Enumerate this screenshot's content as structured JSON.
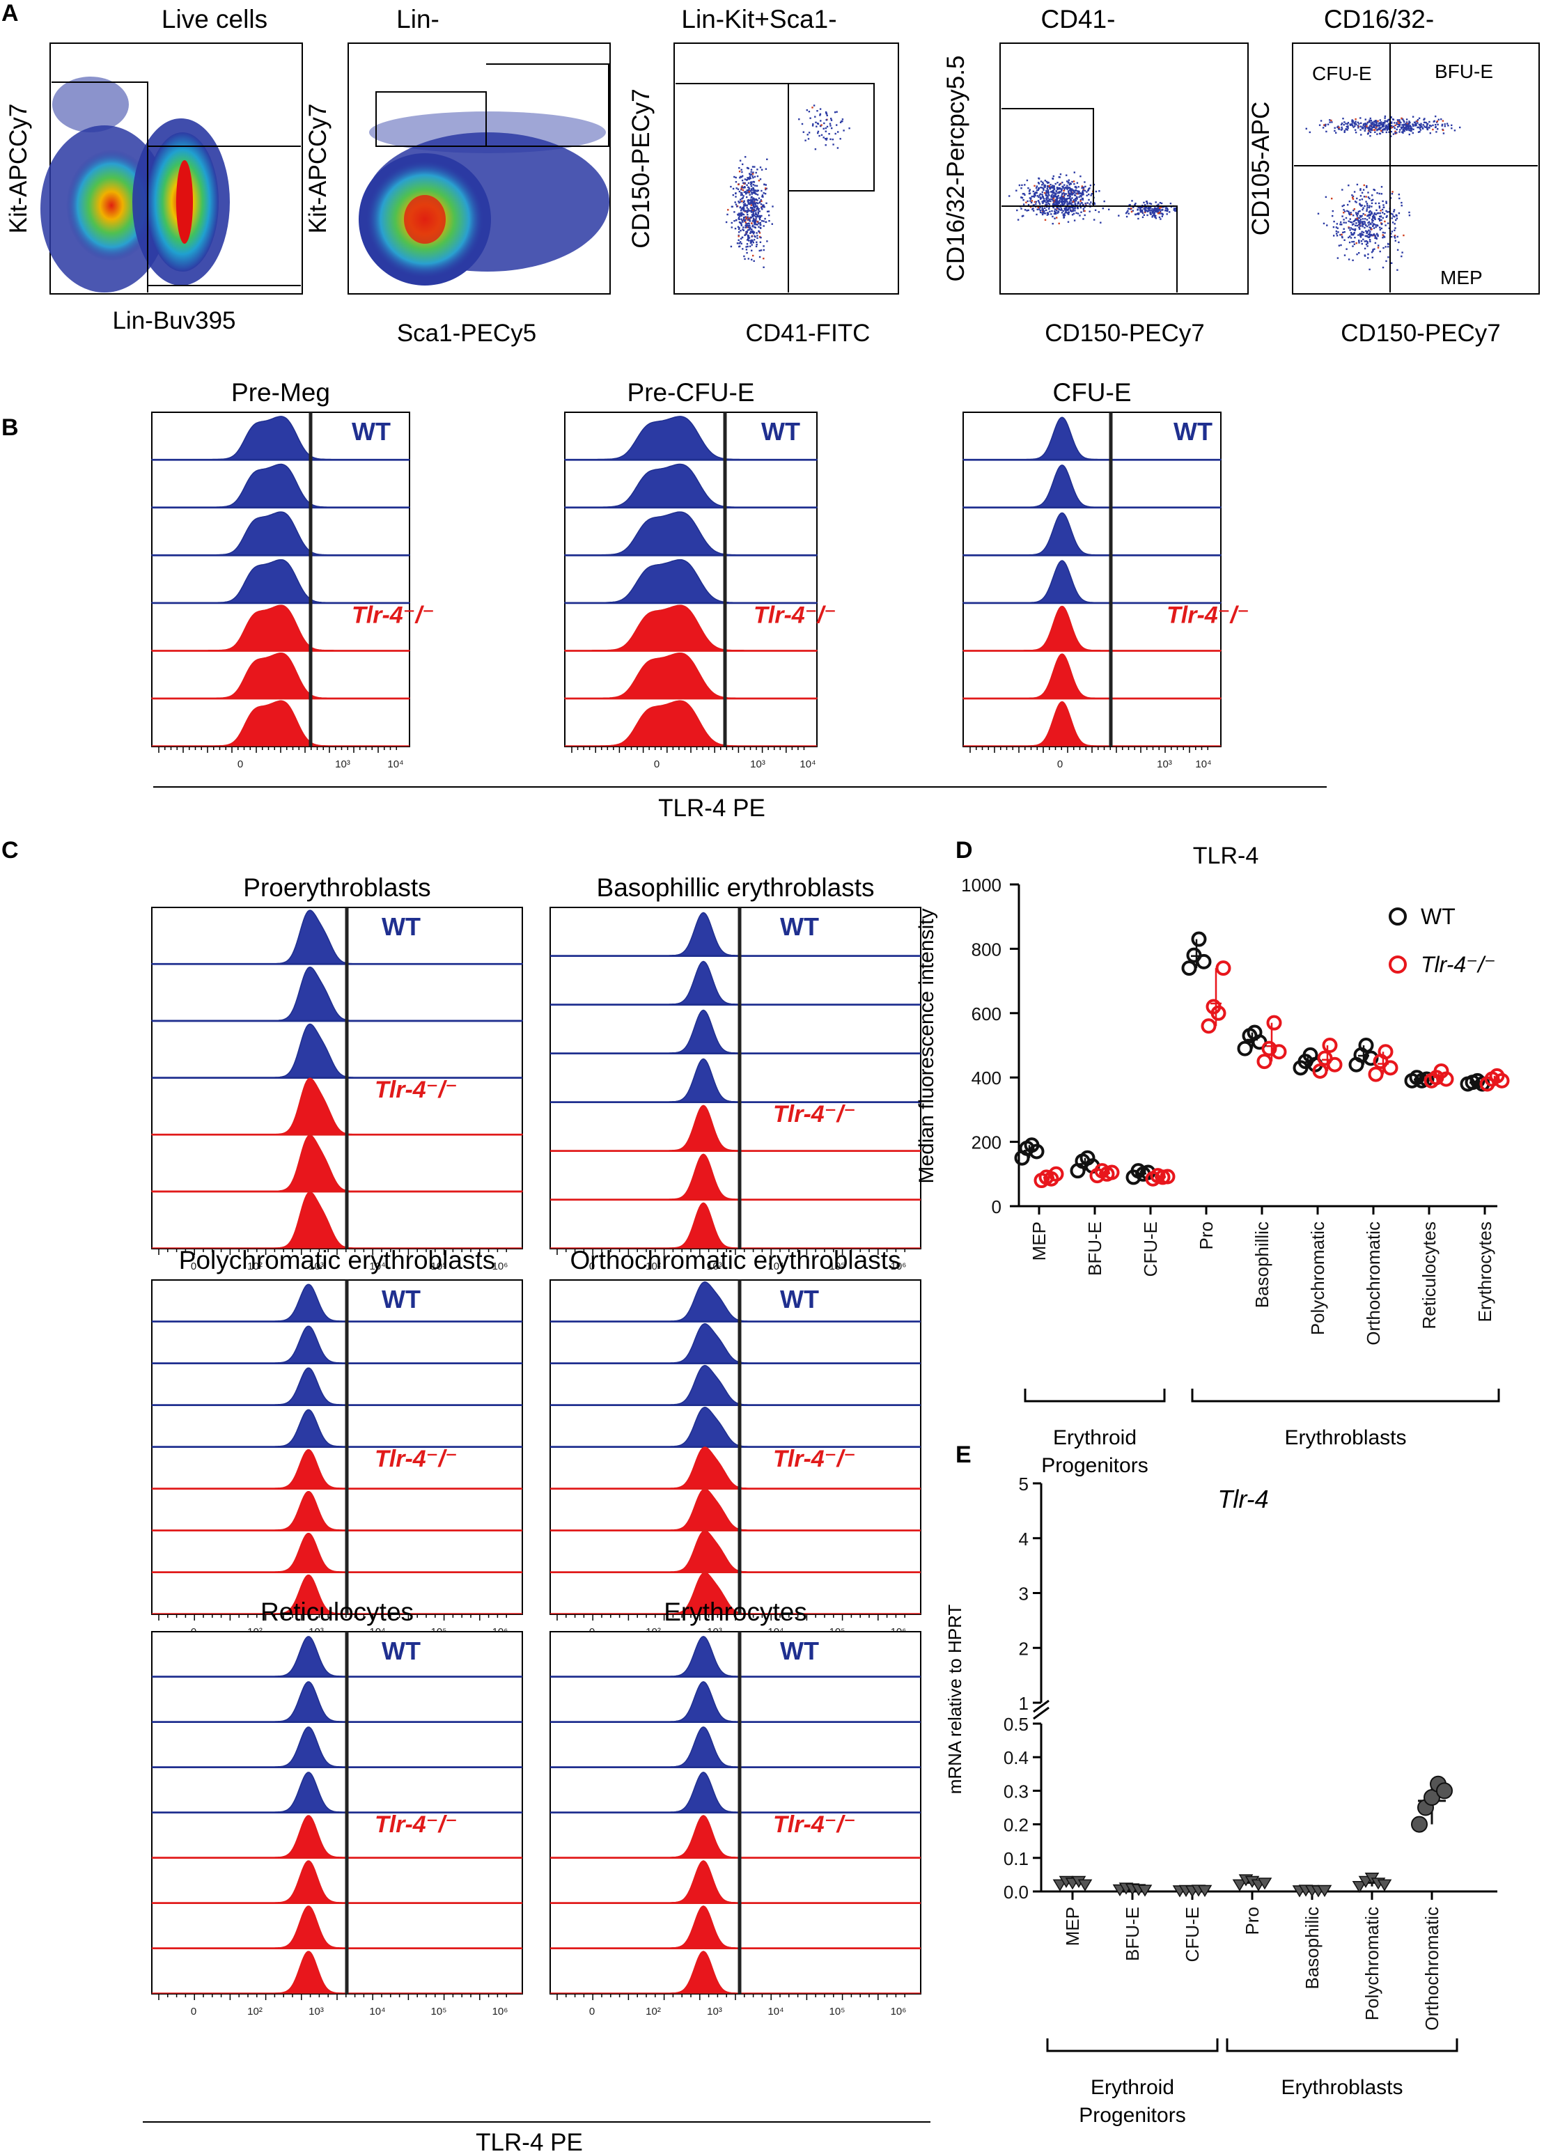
{
  "panel_labels": [
    "A",
    "B",
    "C",
    "D",
    "E"
  ],
  "colors": {
    "wt_blue": "#2b3aa3",
    "ko_red": "#e8161c",
    "wt_line": "#1f2f8f",
    "ko_line": "#e11a1a",
    "dot_wt": "#111111",
    "dot_ko": "#e8161c"
  },
  "panel_a": {
    "plots": [
      {
        "title": "Live cells",
        "xlabel": "Lin-Buv395",
        "ylabel": "Kit-APCCy7",
        "style": "rainbow-dense",
        "gate_labels": []
      },
      {
        "title": "Lin-",
        "xlabel": "Sca1-PECy5",
        "ylabel": "Kit-APCCy7",
        "style": "rainbow-spread",
        "gate_labels": []
      },
      {
        "title": "Lin-Kit+Sca1-",
        "xlabel": "CD41-FITC",
        "ylabel": "CD150-PECy7",
        "style": "sparse",
        "gate_labels": []
      },
      {
        "title": "CD41-",
        "xlabel": "CD150-PECy7",
        "ylabel": "CD16/32-Percpcy5.5",
        "style": "sparse",
        "gate_labels": []
      },
      {
        "title": "CD16/32-",
        "xlabel": "CD150-PECy7",
        "ylabel": "CD105-APC",
        "style": "sparse",
        "gate_labels": [
          "CFU-E",
          "BFU-E",
          "MEP"
        ]
      }
    ]
  },
  "panel_b": {
    "xlabel": "TLR-4 PE",
    "tick_labels": [
      "0",
      "10³",
      "10⁴"
    ],
    "wt_label": "WT",
    "ko_label": "Tlr-4⁻/⁻",
    "plots": [
      {
        "title": "Pre-Meg",
        "n_wt": 4,
        "n_ko": 3
      },
      {
        "title": "Pre-CFU-E",
        "n_wt": 4,
        "n_ko": 3
      },
      {
        "title": "CFU-E",
        "n_wt": 4,
        "n_ko": 3
      }
    ]
  },
  "panel_c": {
    "xlabel": "TLR-4 PE",
    "tick_labels": [
      "0",
      "10²",
      "10³",
      "10⁴",
      "10⁵",
      "10⁶"
    ],
    "wt_label": "WT",
    "ko_label": "Tlr-4⁻/⁻",
    "plots": [
      {
        "title": "Proerythroblasts",
        "n_wt": 3,
        "n_ko": 3
      },
      {
        "title": "Basophillic erythroblasts",
        "n_wt": 4,
        "n_ko": 3
      },
      {
        "title": "Polychromatic erythroblasts",
        "n_wt": 4,
        "n_ko": 4
      },
      {
        "title": "Orthochromatic erythroblasts",
        "n_wt": 4,
        "n_ko": 4
      },
      {
        "title": "Reticulocytes",
        "n_wt": 4,
        "n_ko": 4
      },
      {
        "title": "Erythrocytes",
        "n_wt": 4,
        "n_ko": 4
      }
    ]
  },
  "chart_data": [
    {
      "id": "D",
      "type": "scatter",
      "title": "TLR-4",
      "ylabel": "Median fluorescence intensity",
      "xlabel": "",
      "ylim": [
        0,
        1000
      ],
      "yticks": [
        0,
        200,
        400,
        600,
        800,
        1000
      ],
      "categories": [
        "MEP",
        "BFU-E",
        "CFU-E",
        "Pro",
        "Basophillic",
        "Polychromatic",
        "Orthochromatic",
        "Reticulocytes",
        "Erythrocytes"
      ],
      "groups": [
        {
          "label": "Erythroid Progenitors",
          "label_lines": [
            "Erythroid",
            "Progenitors"
          ],
          "from": 0,
          "to": 2
        },
        {
          "label": "Erythroblasts",
          "label_lines": [
            "Erythroblasts"
          ],
          "from": 3,
          "to": 8
        }
      ],
      "legend": [
        "WT",
        "Tlr-4⁻/⁻"
      ],
      "series": [
        {
          "name": "WT",
          "values": [
            [
              150,
              180,
              190,
              170
            ],
            [
              110,
              140,
              150,
              125
            ],
            [
              90,
              110,
              100,
              105
            ],
            [
              740,
              780,
              830,
              760
            ],
            [
              490,
              530,
              540,
              510
            ],
            [
              430,
              450,
              470,
              440
            ],
            [
              440,
              470,
              500,
              460
            ],
            [
              390,
              400,
              390,
              395
            ],
            [
              380,
              385,
              390,
              380
            ]
          ]
        },
        {
          "name": "Tlr-4⁻/⁻",
          "values": [
            [
              80,
              90,
              85,
              100
            ],
            [
              95,
              110,
              100,
              105
            ],
            [
              85,
              95,
              90,
              92
            ],
            [
              560,
              620,
              600,
              740
            ],
            [
              450,
              490,
              570,
              480
            ],
            [
              420,
              460,
              500,
              440
            ],
            [
              410,
              450,
              480,
              430
            ],
            [
              390,
              400,
              420,
              395
            ],
            [
              380,
              395,
              405,
              390
            ]
          ]
        }
      ]
    },
    {
      "id": "E",
      "type": "scatter",
      "title": "Tlr-4",
      "ylabel": "mRNA relative to HPRT",
      "xlabel": "",
      "ylim_lower": [
        0,
        0.5
      ],
      "ylim_upper": [
        1,
        5
      ],
      "yticks_lower": [
        "0.0",
        "0.1",
        "0.2",
        "0.3",
        "0.4",
        "0.5"
      ],
      "yticks_upper": [
        "1",
        "2",
        "3",
        "4",
        "5"
      ],
      "categories": [
        "MEP",
        "BFU-E",
        "CFU-E",
        "Pro",
        "Basophilic",
        "Polychromatic",
        "Orthochromatic"
      ],
      "groups": [
        {
          "label": "Erythroid Progenitors",
          "label_lines": [
            "Erythroid",
            "Progenitors"
          ],
          "from": 0,
          "to": 2
        },
        {
          "label": "Erythroblasts",
          "label_lines": [
            "Erythroblasts"
          ],
          "from": 3,
          "to": 6
        }
      ],
      "series": [
        {
          "name": "WT",
          "values": [
            [
              0.02,
              0.03,
              0.025,
              0.03,
              0.02
            ],
            [
              0.005,
              0.01,
              0.008,
              0.006,
              0.004
            ],
            [
              0.002,
              0.003,
              0.002,
              0.004,
              0.003
            ],
            [
              0.02,
              0.035,
              0.03,
              0.02,
              0.025
            ],
            [
              0.002,
              0.004,
              0.003,
              0.002,
              0.003
            ],
            [
              0.015,
              0.03,
              0.04,
              0.025,
              0.02
            ],
            [
              0.2,
              0.25,
              0.28,
              0.32,
              0.3
            ]
          ]
        }
      ]
    }
  ]
}
